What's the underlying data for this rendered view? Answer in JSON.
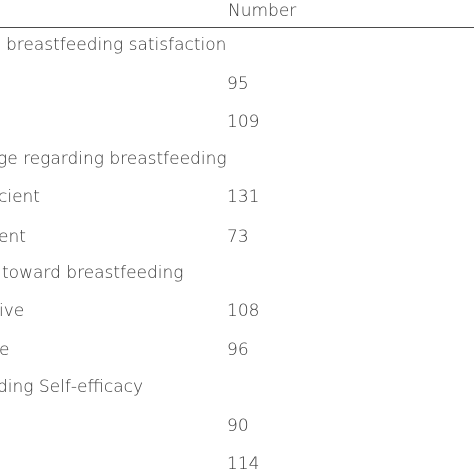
{
  "table": {
    "column_header": "Number",
    "rows": [
      {
        "label": "breastfeeding satisfaction",
        "number": ""
      },
      {
        "label": "",
        "number": "95"
      },
      {
        "label": "",
        "number": "109"
      },
      {
        "label": "ge regarding breastfeeding",
        "number": ""
      },
      {
        "label": "cient",
        "number": "131"
      },
      {
        "label": "ent",
        "number": "73"
      },
      {
        "label": "toward breastfeeding",
        "number": ""
      },
      {
        "label": "ive",
        "number": "108"
      },
      {
        "label": "e",
        "number": "96"
      },
      {
        "label": "ding Self-efficacy",
        "number": ""
      },
      {
        "label": "",
        "number": "90"
      },
      {
        "label": "",
        "number": "114"
      }
    ]
  }
}
